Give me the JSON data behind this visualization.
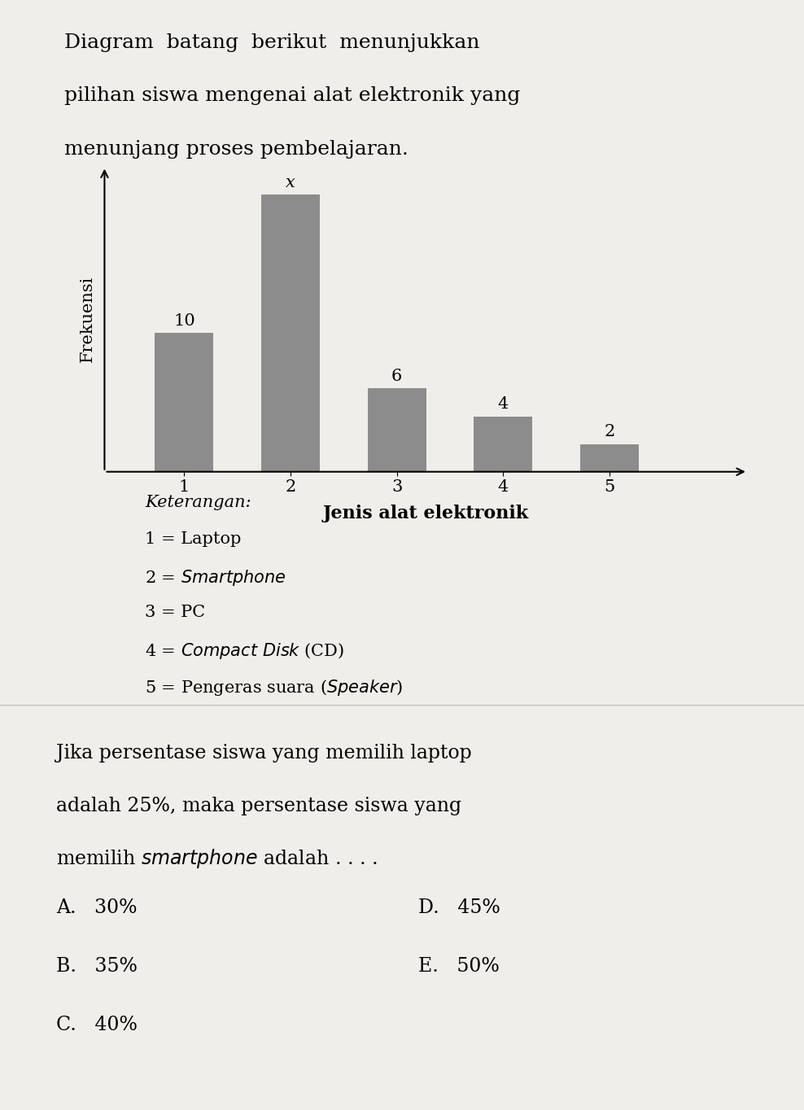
{
  "title_lines": [
    "Diagram  batang  berikut  menunjukkan",
    "pilihan siswa mengenai alat elektronik yang",
    "menunjang proses pembelajaran."
  ],
  "bar_values": [
    10,
    20,
    6,
    4,
    2
  ],
  "bar_labels": [
    "10",
    "x",
    "6",
    "4",
    "2"
  ],
  "bar_color": "#8c8c8c",
  "x_labels": [
    "1",
    "2",
    "3",
    "4",
    "5"
  ],
  "xlabel": "Jenis alat elektronik",
  "ylabel": "Frekuensi",
  "background_color": "#f0eeeb",
  "keterangan_title": "Keterangan:",
  "keterangan_lines": [
    "1 = Laptop",
    "2 = $\\it{Smartphone}$",
    "3 = PC",
    "4 = $\\it{Compact\\ Disk}$ (CD)",
    "5 = Pengeras suara ($\\it{Speaker}$)"
  ],
  "question_lines": [
    "Jika persentase siswa yang memilih laptop",
    "adalah 25%, maka persentase siswa yang",
    "memilih $\\it{smartphone}$ adalah . . . ."
  ],
  "options_left": [
    "A.   30%",
    "B.   35%",
    "C.   40%"
  ],
  "options_right": [
    "D.   45%",
    "E.   50%"
  ],
  "question_bg": "#e2e0dd",
  "ylim_max": 22
}
